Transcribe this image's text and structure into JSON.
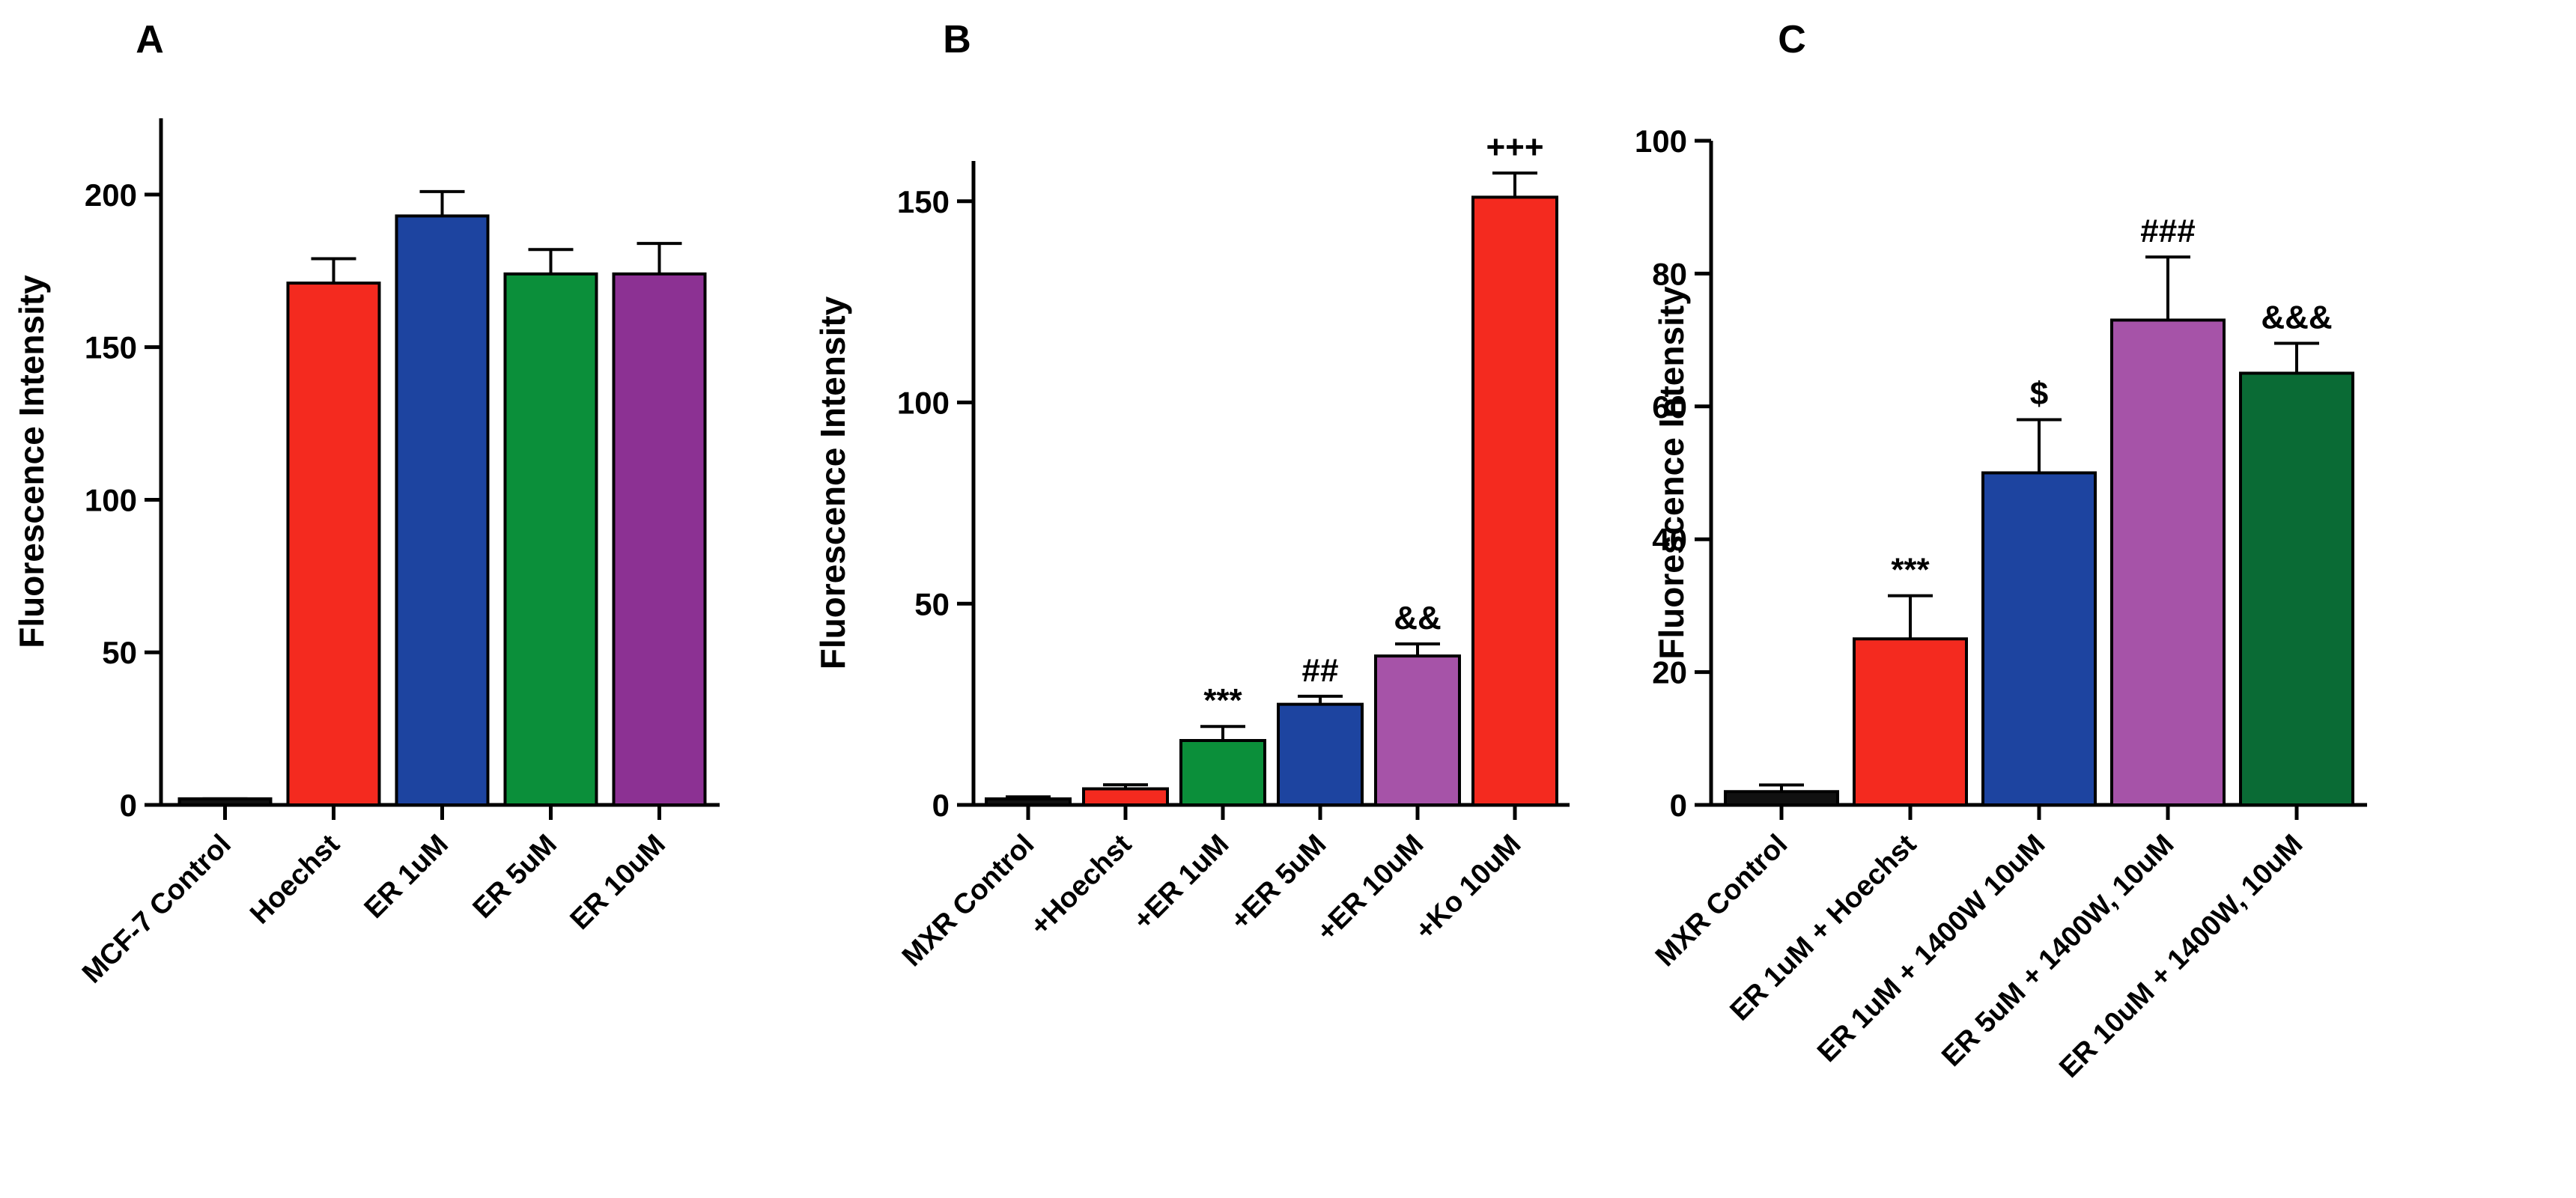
{
  "chart_data": [
    {
      "panel_label": "A",
      "type": "bar",
      "ylabel": "Fluorescence Intensity",
      "ylim": [
        0,
        225
      ],
      "yticks": [
        0,
        50,
        100,
        150,
        200
      ],
      "categories": [
        "MCF-7 Control",
        "Hoechst",
        "ER 1uM",
        "ER 5uM",
        "ER 10uM"
      ],
      "values": [
        2,
        171,
        193,
        174,
        174
      ],
      "errors": [
        0,
        8,
        8,
        8,
        10
      ],
      "colors": [
        "#111111",
        "#f42a1f",
        "#1d44a0",
        "#0b8f3a",
        "#8c3193"
      ],
      "annotations": [
        "",
        "",
        "",
        "",
        ""
      ]
    },
    {
      "panel_label": "B",
      "type": "bar",
      "ylabel": "Fluorescence Intensity",
      "ylim": [
        0,
        160
      ],
      "yticks": [
        0,
        50,
        100,
        150
      ],
      "categories": [
        "MXR Control",
        "+Hoechst",
        "+ER 1uM",
        "+ER 5uM",
        "+ER 10uM",
        "+Ko 10uM"
      ],
      "values": [
        1.5,
        4,
        16,
        25,
        37,
        151
      ],
      "errors": [
        0.5,
        1,
        3.5,
        2,
        3,
        6
      ],
      "colors": [
        "#111111",
        "#f42a1f",
        "#0b8f3a",
        "#1d44a0",
        "#a653a8",
        "#f42a1f"
      ],
      "annotations": [
        "",
        "",
        "***",
        "##",
        "&&",
        "+++"
      ]
    },
    {
      "panel_label": "C",
      "type": "bar",
      "ylabel": "Fluorescence Intensity",
      "ylim": [
        0,
        100
      ],
      "yticks": [
        0,
        20,
        40,
        60,
        80,
        100
      ],
      "categories": [
        "MXR Control",
        "ER 1uM  + Hoechst",
        "ER 1uM + 1400W 10uM",
        "ER 5uM + 1400W, 10uM",
        "ER 10uM + 1400W, 10uM"
      ],
      "values": [
        2,
        25,
        50,
        73,
        65
      ],
      "errors": [
        1,
        6.5,
        8,
        9.5,
        4.5
      ],
      "colors": [
        "#111111",
        "#f42a1f",
        "#1d44a0",
        "#a653a8",
        "#0a6b35"
      ],
      "annotations": [
        "",
        "***",
        "$",
        "###",
        "&&&"
      ]
    }
  ]
}
